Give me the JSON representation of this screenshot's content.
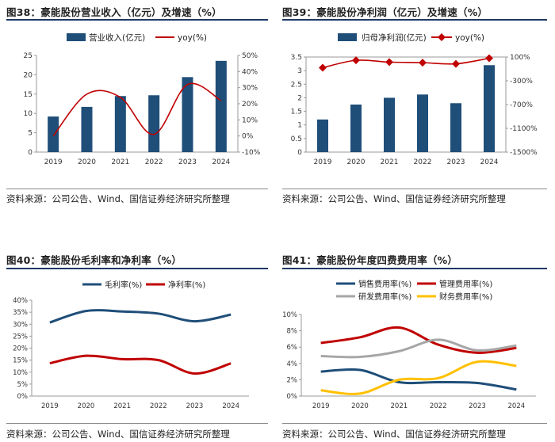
{
  "colors": {
    "navy": "#1f4e79",
    "red": "#c00000",
    "gray": "#a6a6a6",
    "yellow": "#ffc000"
  },
  "source_text": "资料来源：公司公告、Wind、国信证券经济研究所整理",
  "chart_data": [
    {
      "id": "c38",
      "type": "bar+line",
      "title": "图38：豪能股份营业收入（亿元）及增速（%）",
      "categories": [
        "2019",
        "2020",
        "2021",
        "2022",
        "2023",
        "2024"
      ],
      "series": [
        {
          "name": "营业收入(亿元)",
          "kind": "bar",
          "axis": "left",
          "color": "#1f4e79",
          "values": [
            9.2,
            11.7,
            14.5,
            14.7,
            19.4,
            23.6
          ]
        },
        {
          "name": "yoy(%)",
          "kind": "line",
          "axis": "right",
          "color": "#c00000",
          "values": [
            0,
            26,
            24,
            1,
            32,
            22
          ]
        }
      ],
      "left_ticks": [
        "0",
        "5",
        "10",
        "15",
        "20",
        "25"
      ],
      "left_range": [
        0,
        25
      ],
      "right_ticks": [
        "-10%",
        "0%",
        "10%",
        "20%",
        "30%",
        "40%",
        "50%"
      ],
      "right_range": [
        -10,
        50
      ],
      "legend": "top"
    },
    {
      "id": "c39",
      "type": "bar+line",
      "title": "图39：豪能股份净利润（亿元）及增速（%）",
      "categories": [
        "2019",
        "2020",
        "2021",
        "2022",
        "2023",
        "2024"
      ],
      "series": [
        {
          "name": "归母净利润(亿元)",
          "kind": "bar",
          "axis": "left",
          "color": "#1f4e79",
          "values": [
            1.2,
            1.75,
            2.0,
            2.12,
            1.8,
            3.2
          ]
        },
        {
          "name": "yoy(%)",
          "kind": "line",
          "axis": "right",
          "color": "#c00000",
          "markers": true,
          "values": [
            -80,
            45,
            15,
            5,
            -15,
            80
          ]
        }
      ],
      "left_ticks": [
        "0",
        "0.5",
        "1",
        "1.5",
        "2",
        "2.5",
        "3",
        "3.5"
      ],
      "left_range": [
        0,
        3.5
      ],
      "right_ticks": [
        "-1500%",
        "-1100%",
        "-700%",
        "-300%",
        "100%"
      ],
      "right_range": [
        -1500,
        100
      ],
      "legend": "top"
    },
    {
      "id": "c40",
      "type": "line",
      "title": "图40：豪能股份毛利率和净利率（%）",
      "categories": [
        "2019",
        "2020",
        "2021",
        "2022",
        "2023",
        "2024"
      ],
      "series": [
        {
          "name": "毛利率(%)",
          "color": "#1f4e79",
          "values": [
            30.7,
            35.5,
            35.3,
            34.4,
            31.2,
            34.0
          ]
        },
        {
          "name": "净利率(%)",
          "color": "#c00000",
          "values": [
            13.7,
            16.8,
            15.4,
            15.0,
            9.4,
            13.6
          ]
        }
      ],
      "left_ticks": [
        "0%",
        "5%",
        "10%",
        "15%",
        "20%",
        "25%",
        "30%",
        "35%",
        "40%"
      ],
      "left_range": [
        0,
        40
      ],
      "legend": "top"
    },
    {
      "id": "c41",
      "type": "line",
      "title": "图41：豪能股份年度四费费用率（%）",
      "categories": [
        "2019",
        "2020",
        "2021",
        "2022",
        "2023",
        "2024"
      ],
      "series": [
        {
          "name": "销售费用率(%)",
          "color": "#1f4e79",
          "values": [
            3.0,
            3.2,
            1.7,
            1.7,
            1.6,
            0.8
          ]
        },
        {
          "name": "管理费用率(%)",
          "color": "#c00000",
          "values": [
            6.5,
            7.2,
            8.4,
            6.3,
            5.3,
            5.9
          ]
        },
        {
          "name": "研发费用率(%)",
          "color": "#a6a6a6",
          "values": [
            4.9,
            4.8,
            5.5,
            6.9,
            5.6,
            6.2
          ]
        },
        {
          "name": "财务费用率(%)",
          "color": "#ffc000",
          "values": [
            0.7,
            0.3,
            2.0,
            2.2,
            4.2,
            3.7
          ]
        }
      ],
      "left_ticks": [
        "0%",
        "2%",
        "4%",
        "6%",
        "8%",
        "10%"
      ],
      "left_range": [
        0,
        10
      ],
      "legend": "top"
    }
  ]
}
